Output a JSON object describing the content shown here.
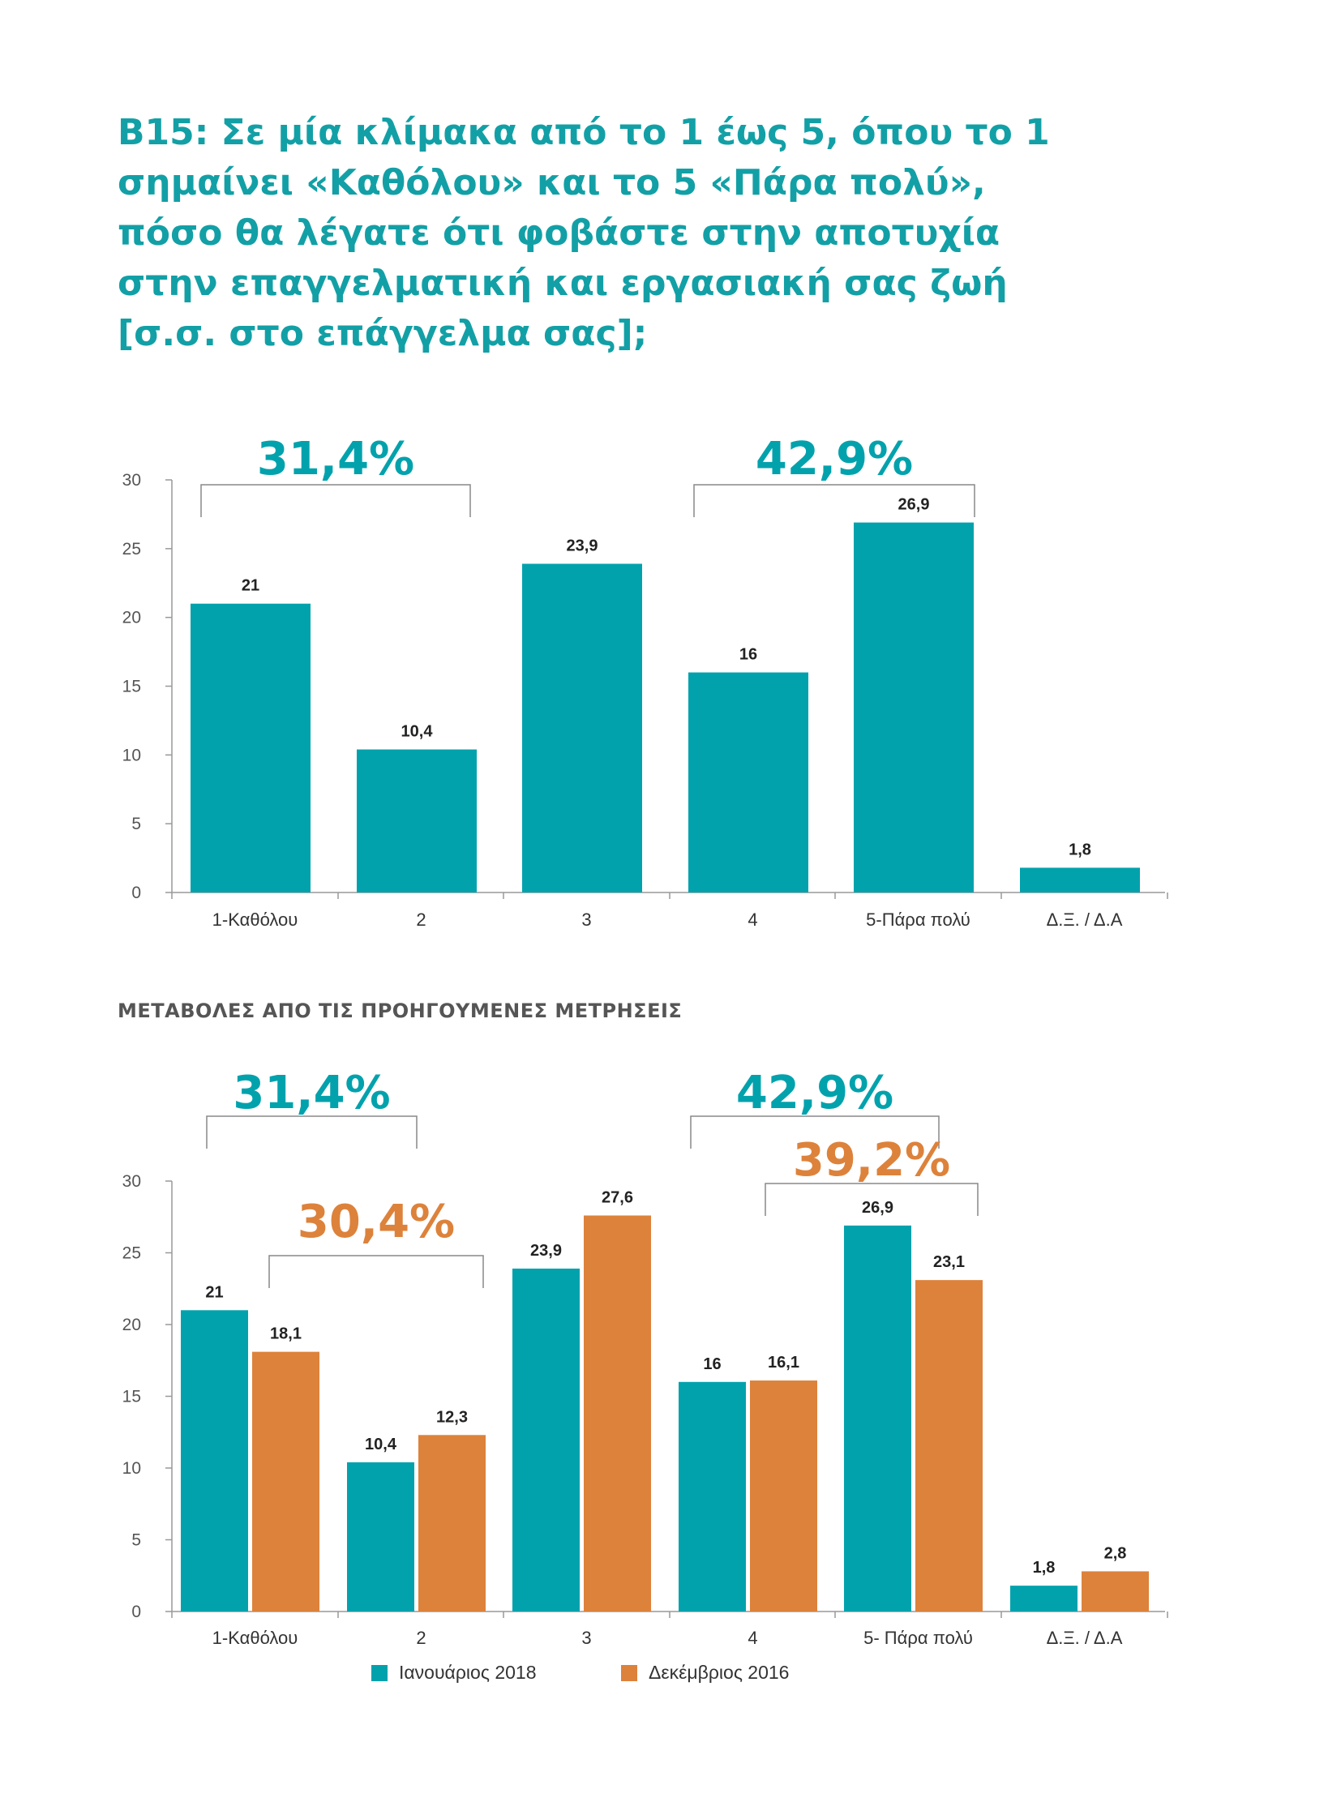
{
  "question": "B15: Σε μία κλίμακα από το 1 έως 5, όπου το 1 σημαίνει «Καθόλου» και το 5 «Πάρα πολύ», πόσο θα λέγατε ότι φοβάστε στην αποτυχία στην επαγγελματική και εργασιακή σας ζωή [σ.σ. στο επάγγελμα σας];",
  "changes_title": "ΜΕΤΑΒΟΛΕΣ ΑΠΟ ΤΙΣ ΠΡΟΗΓΟΥΜΕΝΕΣ ΜΕΤΡΗΣΕΙΣ",
  "colors": {
    "teal": "#02a2ad",
    "orange": "#dd823b",
    "title": "#12a0a6"
  },
  "chart_data": [
    {
      "type": "bar",
      "categories": [
        "1-Καθόλου",
        "2",
        "3",
        "4",
        "5-Πάρα πολύ",
        "Δ.Ξ. / Δ.Α"
      ],
      "series": [
        {
          "values": [
            21,
            10.4,
            23.9,
            16,
            26.9,
            1.8
          ],
          "labels": [
            "21",
            "10,4",
            "23,9",
            "16",
            "26,9",
            "1,8"
          ]
        }
      ],
      "ylim": [
        0,
        30
      ],
      "yticks": [
        0,
        5,
        10,
        15,
        20,
        25,
        30
      ],
      "annotations": [
        {
          "text": "31,4%",
          "from": 0,
          "to": 1,
          "series": 0
        },
        {
          "text": "42,9%",
          "from": 3,
          "to": 4,
          "series": 0
        }
      ]
    },
    {
      "type": "bar",
      "categories": [
        "1-Καθόλου",
        "2",
        "3",
        "4",
        "5- Πάρα πολύ",
        "Δ.Ξ. / Δ.Α"
      ],
      "series": [
        {
          "name": "Ιανουάριος 2018",
          "values": [
            21,
            10.4,
            23.9,
            16,
            26.9,
            1.8
          ],
          "labels": [
            "21",
            "10,4",
            "23,9",
            "16",
            "26,9",
            "1,8"
          ]
        },
        {
          "name": "Δεκέμβριος 2016",
          "values": [
            18.1,
            12.3,
            27.6,
            16.1,
            23.1,
            2.8
          ],
          "labels": [
            "18,1",
            "12,3",
            "27,6",
            "16,1",
            "23,1",
            "2,8"
          ]
        }
      ],
      "ylim": [
        0,
        30
      ],
      "yticks": [
        0,
        5,
        10,
        15,
        20,
        25,
        30
      ],
      "legend": "bottom",
      "annotations": [
        {
          "text": "31,4%",
          "from": 0,
          "to": 1,
          "series": 0
        },
        {
          "text": "42,9%",
          "from": 3,
          "to": 4,
          "series": 0
        },
        {
          "text": "30,4%",
          "from": 0,
          "to": 1,
          "series": 1
        },
        {
          "text": "39,2%",
          "from": 3,
          "to": 4,
          "series": 1
        }
      ]
    }
  ]
}
